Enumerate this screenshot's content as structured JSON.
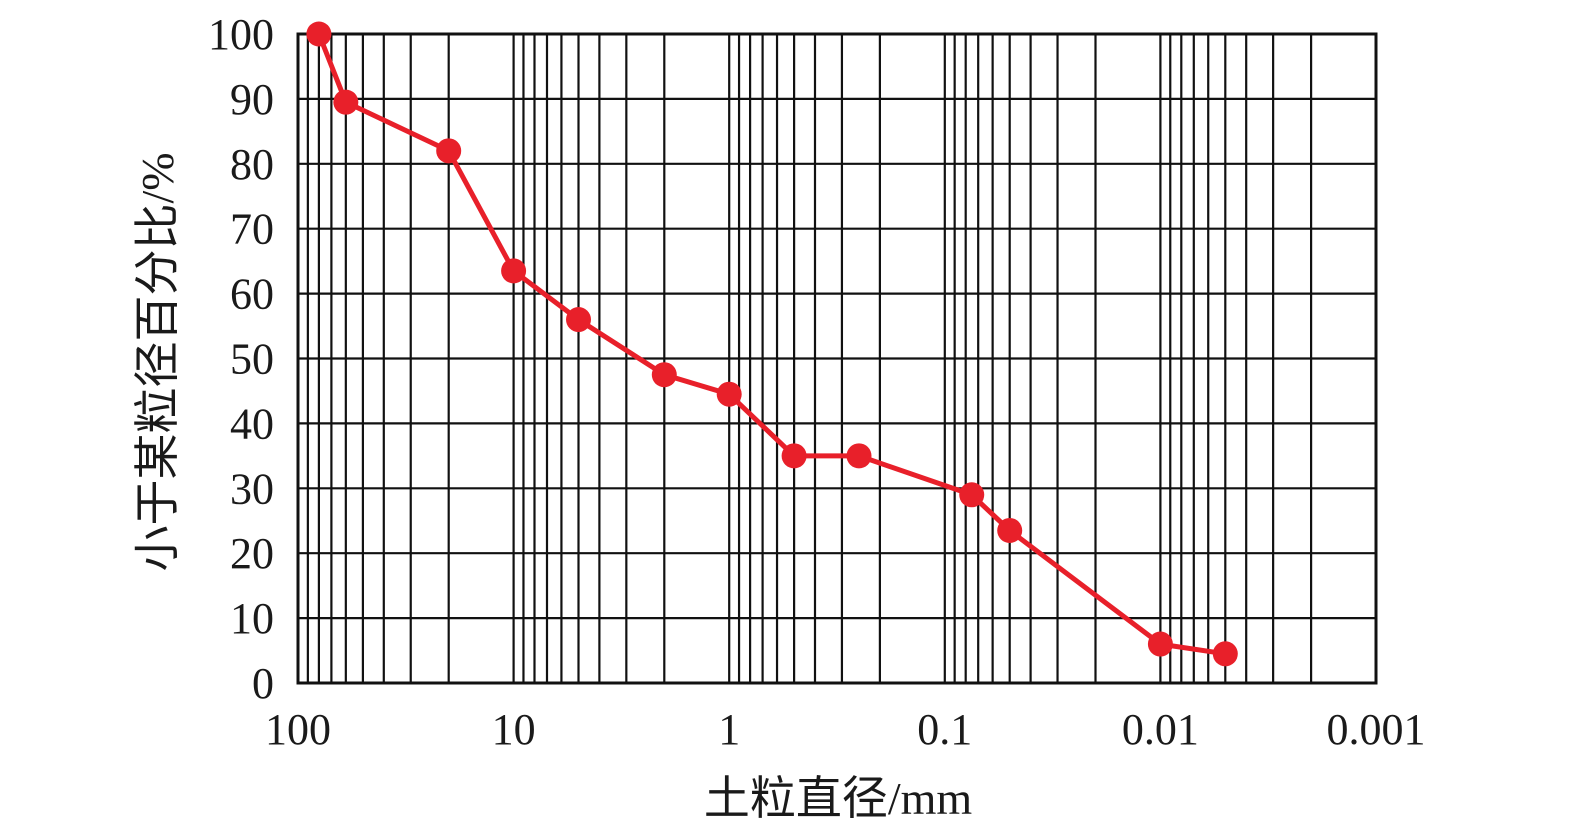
{
  "chart_data": {
    "type": "line",
    "xlabel": "土粒直径/mm",
    "ylabel": "小于某粒径百分比/%",
    "x_scale": "log",
    "x_reversed": true,
    "xlim": [
      100,
      0.001
    ],
    "ylim": [
      0,
      100
    ],
    "x_ticks": [
      100,
      10,
      1,
      0.1,
      0.01,
      0.001
    ],
    "x_tick_labels": [
      "100",
      "10",
      "1",
      "0.1",
      "0.01",
      "0.001"
    ],
    "y_ticks": [
      0,
      10,
      20,
      30,
      40,
      50,
      60,
      70,
      80,
      90,
      100
    ],
    "y_tick_labels": [
      "0",
      "10",
      "20",
      "30",
      "40",
      "50",
      "60",
      "70",
      "80",
      "90",
      "100"
    ],
    "grid": true,
    "series_color": "#e8202a",
    "series": [
      {
        "x": [
          80,
          60,
          20,
          10,
          5,
          2,
          1,
          0.5,
          0.25,
          0.075,
          0.05,
          0.01,
          0.005
        ],
        "y": [
          100,
          89.5,
          82,
          63.5,
          56,
          47.5,
          44.5,
          35,
          35,
          29,
          23.5,
          6,
          4.5
        ]
      }
    ]
  }
}
